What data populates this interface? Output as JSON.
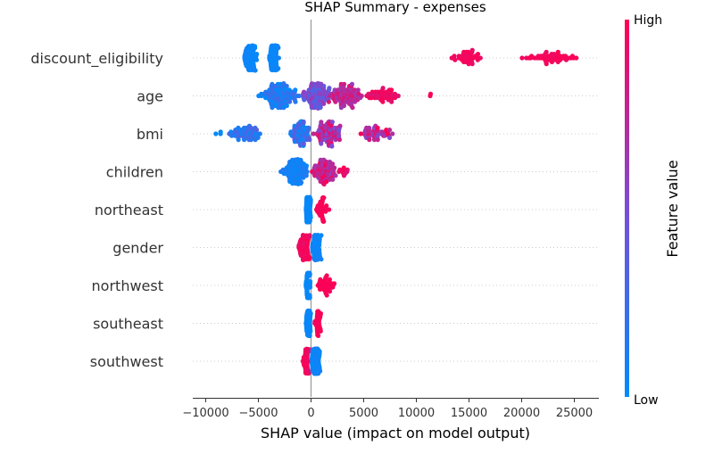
{
  "chart_data": {
    "type": "scatter",
    "subtype": "shap-beeswarm",
    "title": "SHAP Summary - expenses",
    "xlabel": "SHAP value (impact on model output)",
    "xlim": [
      -11000,
      27000
    ],
    "xticks": [
      -10000,
      -5000,
      0,
      5000,
      10000,
      15000,
      20000,
      25000
    ],
    "xtick_labels": [
      "−10000",
      "−5000",
      "0",
      "5000",
      "10000",
      "15000",
      "20000",
      "25000"
    ],
    "colorbar": {
      "label": "Feature value",
      "high_label": "High",
      "low_label": "Low",
      "low_color": "#008bfb",
      "high_color": "#ff0052"
    },
    "grid": "dotted horizontal per feature",
    "features": [
      {
        "name": "discount_eligibility",
        "clusters": [
          {
            "min": -6500,
            "max": -5000,
            "count": 80,
            "fv": [
              0.0,
              0.08
            ]
          },
          {
            "min": -4000,
            "max": -3000,
            "count": 70,
            "fv": [
              0.0,
              0.08
            ]
          },
          {
            "min": 13000,
            "max": 16500,
            "count": 40,
            "fv": [
              0.92,
              1.0
            ]
          },
          {
            "min": 20000,
            "max": 25500,
            "count": 50,
            "fv": [
              0.92,
              1.0
            ]
          }
        ]
      },
      {
        "name": "age",
        "clusters": [
          {
            "min": -5000,
            "max": -1000,
            "count": 110,
            "fv": [
              0.0,
              0.3
            ]
          },
          {
            "min": -1000,
            "max": 2000,
            "count": 110,
            "fv": [
              0.3,
              0.65
            ]
          },
          {
            "min": 1500,
            "max": 5000,
            "count": 90,
            "fv": [
              0.6,
              0.9
            ]
          },
          {
            "min": 5000,
            "max": 8500,
            "count": 50,
            "fv": [
              0.85,
              1.0
            ]
          },
          {
            "min": 10000,
            "max": 11500,
            "count": 2,
            "fv": [
              0.95,
              1.0
            ]
          }
        ]
      },
      {
        "name": "bmi",
        "clusters": [
          {
            "min": -9500,
            "max": -8000,
            "count": 3,
            "fv": [
              0.0,
              0.05
            ]
          },
          {
            "min": -8000,
            "max": -4500,
            "count": 60,
            "fv": [
              0.05,
              0.35
            ]
          },
          {
            "min": -2000,
            "max": 0,
            "count": 70,
            "fv": [
              0.0,
              0.4
            ]
          },
          {
            "min": 0,
            "max": 3000,
            "count": 90,
            "fv": [
              0.45,
              0.95
            ]
          },
          {
            "min": 4000,
            "max": 8000,
            "count": 45,
            "fv": [
              0.5,
              1.0
            ]
          }
        ]
      },
      {
        "name": "children",
        "clusters": [
          {
            "min": -3000,
            "max": 0,
            "count": 100,
            "fv": [
              0.0,
              0.15
            ]
          },
          {
            "min": 0,
            "max": 2500,
            "count": 80,
            "fv": [
              0.6,
              1.0
            ]
          },
          {
            "min": 2500,
            "max": 3700,
            "count": 12,
            "fv": [
              0.85,
              1.0
            ]
          }
        ]
      },
      {
        "name": "northeast",
        "clusters": [
          {
            "min": -500,
            "max": 0,
            "count": 120,
            "fv": [
              0.0,
              0.05
            ]
          },
          {
            "min": 300,
            "max": 1800,
            "count": 35,
            "fv": [
              0.95,
              1.0
            ]
          }
        ]
      },
      {
        "name": "gender",
        "clusters": [
          {
            "min": -1200,
            "max": 0,
            "count": 70,
            "fv": [
              0.9,
              1.0
            ]
          },
          {
            "min": 0,
            "max": 1000,
            "count": 70,
            "fv": [
              0.0,
              0.1
            ]
          }
        ]
      },
      {
        "name": "northwest",
        "clusters": [
          {
            "min": -500,
            "max": 0,
            "count": 110,
            "fv": [
              0.0,
              0.05
            ]
          },
          {
            "min": 300,
            "max": 2600,
            "count": 35,
            "fv": [
              0.95,
              1.0
            ]
          }
        ]
      },
      {
        "name": "southeast",
        "clusters": [
          {
            "min": -500,
            "max": 0,
            "count": 110,
            "fv": [
              0.0,
              0.05
            ]
          },
          {
            "min": 200,
            "max": 1100,
            "count": 30,
            "fv": [
              0.95,
              1.0
            ]
          }
        ]
      },
      {
        "name": "southwest",
        "clusters": [
          {
            "min": -800,
            "max": 0,
            "count": 60,
            "fv": [
              0.9,
              1.0
            ]
          },
          {
            "min": 0,
            "max": 900,
            "count": 110,
            "fv": [
              0.0,
              0.1
            ]
          }
        ]
      }
    ]
  }
}
